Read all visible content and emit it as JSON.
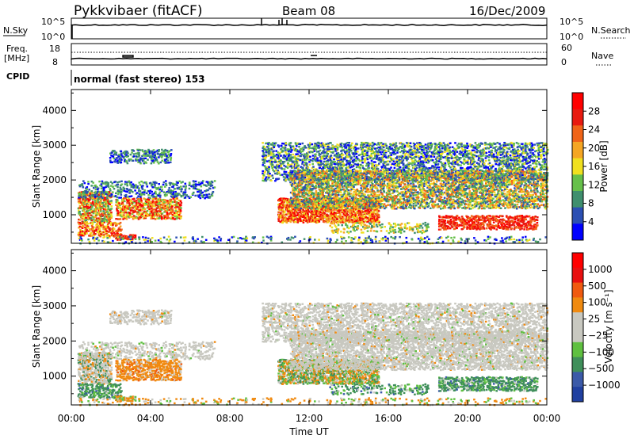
{
  "header": {
    "station": "Pykkvibaer (fitACF)",
    "beam": "Beam 08",
    "date": "16/Dec/2009"
  },
  "strips": {
    "nsky_label": "N.Sky",
    "nsky_ticks": [
      "10^5",
      "10^0"
    ],
    "nsearch_label": "N.Search",
    "nsearch_ticks": [
      "10^5",
      "10^0"
    ],
    "freq_label_top": "Freq.",
    "freq_label_bottom": "[MHz]",
    "freq_ticks": [
      "18",
      "8"
    ],
    "nave_label": "Nave",
    "nave_ticks": [
      "60",
      "0"
    ],
    "cpid_label": "CPID",
    "cpid_text": "normal (fast stereo) 153"
  },
  "colors": {
    "power_scale": [
      "#0000ff",
      "#2b4fb3",
      "#3f8f6e",
      "#66c04a",
      "#f0e020",
      "#f5a623",
      "#f06418",
      "#e81a10",
      "#ff0000"
    ],
    "velocity_scale": [
      "#2040a0",
      "#3b5aa8",
      "#3f8f5a",
      "#5fc040",
      "#c8c8c0",
      "#c8c8c0",
      "#f08a10",
      "#f05a10",
      "#e81010",
      "#ff0000"
    ],
    "gray_scatter": "#c8c8c0"
  },
  "chart_data": [
    {
      "type": "heatmap",
      "name": "power",
      "ylabel": "Slant Range [km]",
      "ylim": [
        180,
        4600
      ],
      "xlim": [
        "00:00",
        "24:00"
      ],
      "yticks": [
        "1000",
        "2000",
        "3000",
        "4000"
      ],
      "colorbar_label": "Power [dB]",
      "colorbar_ticks": [
        "4",
        "8",
        "12",
        "16",
        "20",
        "24",
        "28"
      ]
    },
    {
      "type": "heatmap",
      "name": "velocity",
      "ylabel": "Slant Range [km]",
      "ylim": [
        180,
        4600
      ],
      "xlim": [
        "00:00",
        "24:00"
      ],
      "yticks": [
        "1000",
        "2000",
        "3000",
        "4000"
      ],
      "colorbar_label": "Velocity [m s⁻¹]",
      "colorbar_ticks": [
        "1000",
        "500",
        "100",
        "25",
        "−25",
        "−100",
        "−500",
        "−1000"
      ],
      "xticks": [
        "00:00",
        "04:00",
        "08:00",
        "12:00",
        "16:00",
        "20:00",
        "00:00"
      ],
      "xlabel": "Time UT"
    }
  ]
}
